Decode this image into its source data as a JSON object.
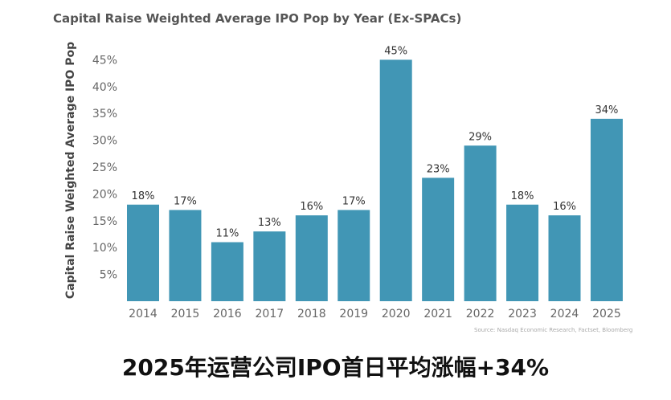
{
  "chart_data": {
    "type": "bar",
    "title": "Capital Raise Weighted Average IPO Pop by Year (Ex-SPACs)",
    "xlabel": "",
    "ylabel": "Capital Raise Weighted Average IPO Pop",
    "categories": [
      "2014",
      "2015",
      "2016",
      "2017",
      "2018",
      "2019",
      "2020",
      "2021",
      "2022",
      "2023",
      "2024",
      "2025"
    ],
    "values": [
      18,
      17,
      11,
      13,
      16,
      17,
      45,
      23,
      29,
      18,
      16,
      34
    ],
    "data_labels": [
      "18%",
      "17%",
      "11%",
      "13%",
      "16%",
      "17%",
      "45%",
      "23%",
      "29%",
      "18%",
      "16%",
      "34%"
    ],
    "yticks": [
      5,
      10,
      15,
      20,
      25,
      30,
      35,
      40,
      45
    ],
    "ytick_labels": [
      "5%",
      "10%",
      "15%",
      "20%",
      "25%",
      "30%",
      "35%",
      "40%",
      "45%"
    ],
    "ylim": [
      0,
      46
    ],
    "grid": false,
    "bar_color": "#4196b5",
    "source": "Source: Nasdaq Economic Research, Factset, Bloomberg"
  },
  "caption": "2025年运营公司IPO首日平均涨幅+34%"
}
